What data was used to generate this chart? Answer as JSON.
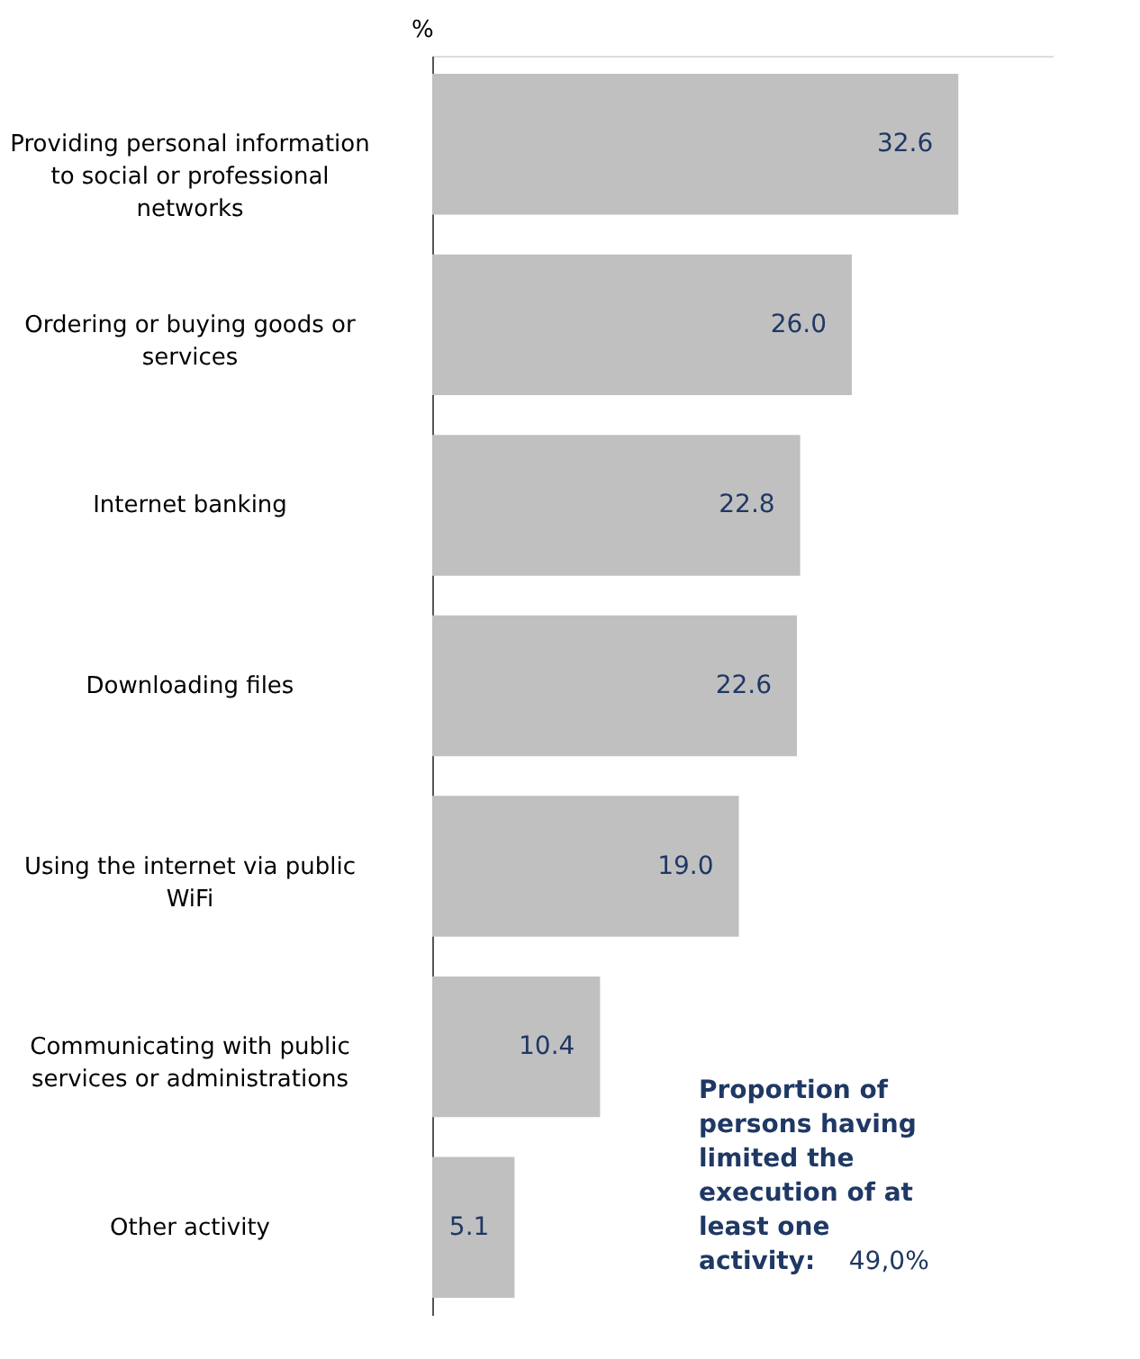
{
  "chart_data": {
    "type": "bar",
    "orientation": "horizontal",
    "xlabel": "%",
    "categories": [
      "Providing personal information to social or professional networks",
      "Ordering or buying goods or services",
      "Internet banking",
      "Downloading files",
      "Using the internet via public WiFi",
      "Communicating with public services or administrations",
      "Other activity"
    ],
    "values": [
      32.6,
      26.0,
      22.8,
      22.6,
      19.0,
      10.4,
      5.1
    ],
    "color": "#c0c0c0",
    "value_labels": [
      "32.6",
      "26.0",
      "22.8",
      "22.6",
      "19.0",
      "10.4",
      "5.1"
    ],
    "xlim": [
      0,
      38.5
    ],
    "grid": false,
    "annotations": [
      "Proportion of persons having limited the execution of at least one activity: 49,0%"
    ]
  }
}
